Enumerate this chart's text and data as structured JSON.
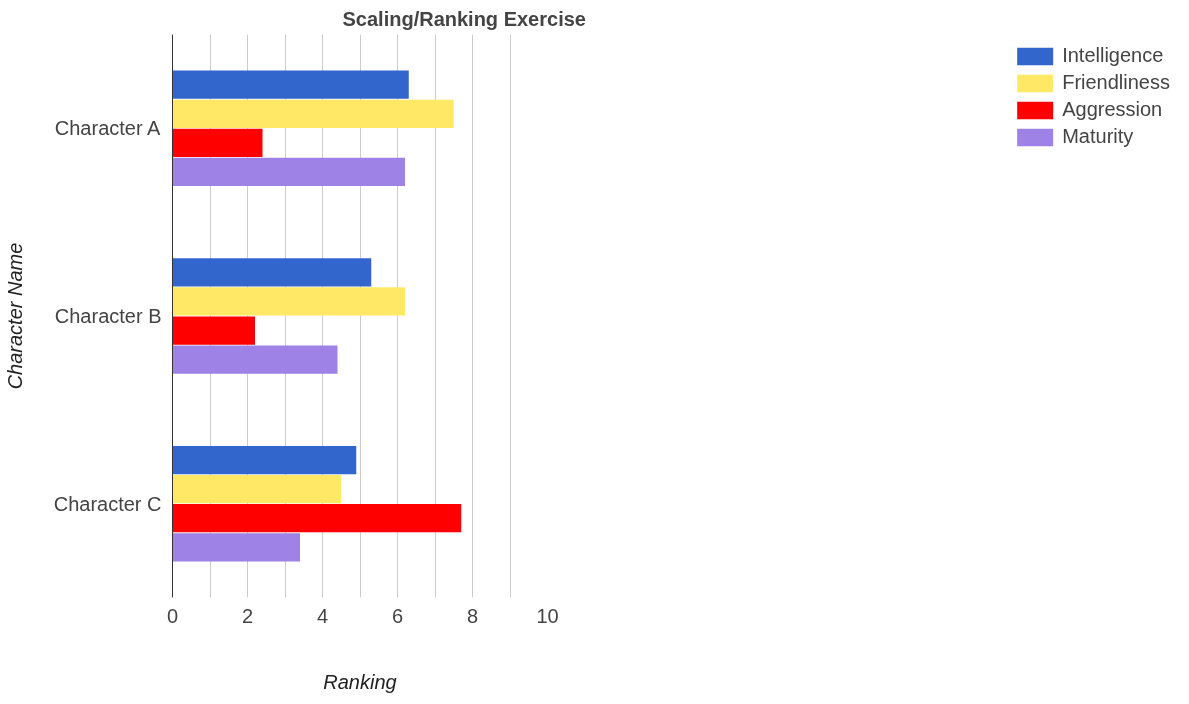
{
  "chart_data": {
    "type": "bar",
    "orientation": "horizontal",
    "title": "Scaling/Ranking Exercise",
    "xlabel": "Ranking",
    "ylabel": "Character Name",
    "categories": [
      "Character A",
      "Character B",
      "Character C"
    ],
    "series": [
      {
        "name": "Intelligence",
        "color": "#3366cc",
        "values": [
          6.3,
          5.3,
          4.9
        ]
      },
      {
        "name": "Friendliness",
        "color": "#ffe866",
        "values": [
          7.5,
          6.2,
          4.5
        ]
      },
      {
        "name": "Aggression",
        "color": "#ff0000",
        "values": [
          2.4,
          2.2,
          7.7
        ]
      },
      {
        "name": "Maturity",
        "color": "#9e82e6",
        "values": [
          6.2,
          4.4,
          3.4
        ]
      }
    ],
    "xlim": [
      0,
      10
    ],
    "xticks": [
      0,
      {
        "value": 1,
        "label": null
      },
      2,
      {
        "value": 3,
        "label": null
      },
      4,
      {
        "value": 5,
        "label": null
      },
      6,
      {
        "value": 7,
        "label": null
      },
      8,
      {
        "value": 9,
        "label": null
      },
      10
    ],
    "grid": "x",
    "legend": "top right"
  }
}
